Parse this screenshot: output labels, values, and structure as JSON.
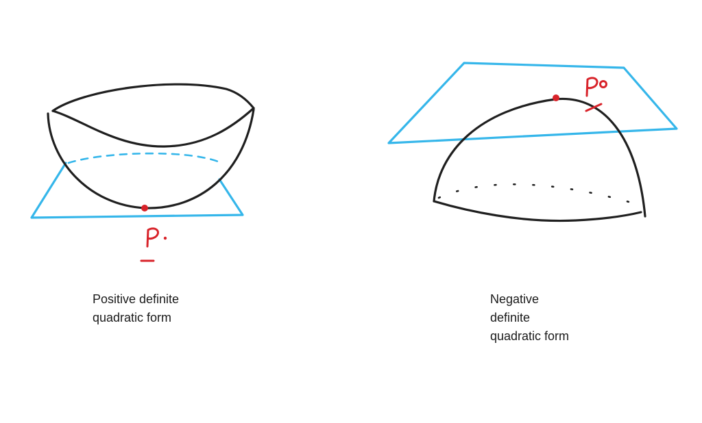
{
  "figures": [
    {
      "id": "positive-definite",
      "caption_lines": [
        "Positive definite",
        "quadratic form"
      ],
      "point_label": "P",
      "shape": "bowl",
      "tangent_plane_position": "below"
    },
    {
      "id": "negative-definite",
      "caption_lines": [
        "Negative",
        "definite",
        "quadratic form"
      ],
      "point_label": "P",
      "shape": "dome",
      "tangent_plane_position": "above"
    }
  ],
  "colors": {
    "surface_ink": "#1f1f1f",
    "plane_ink": "#35b6ea",
    "point_ink": "#d8232a",
    "text": "#1a1a1a"
  }
}
